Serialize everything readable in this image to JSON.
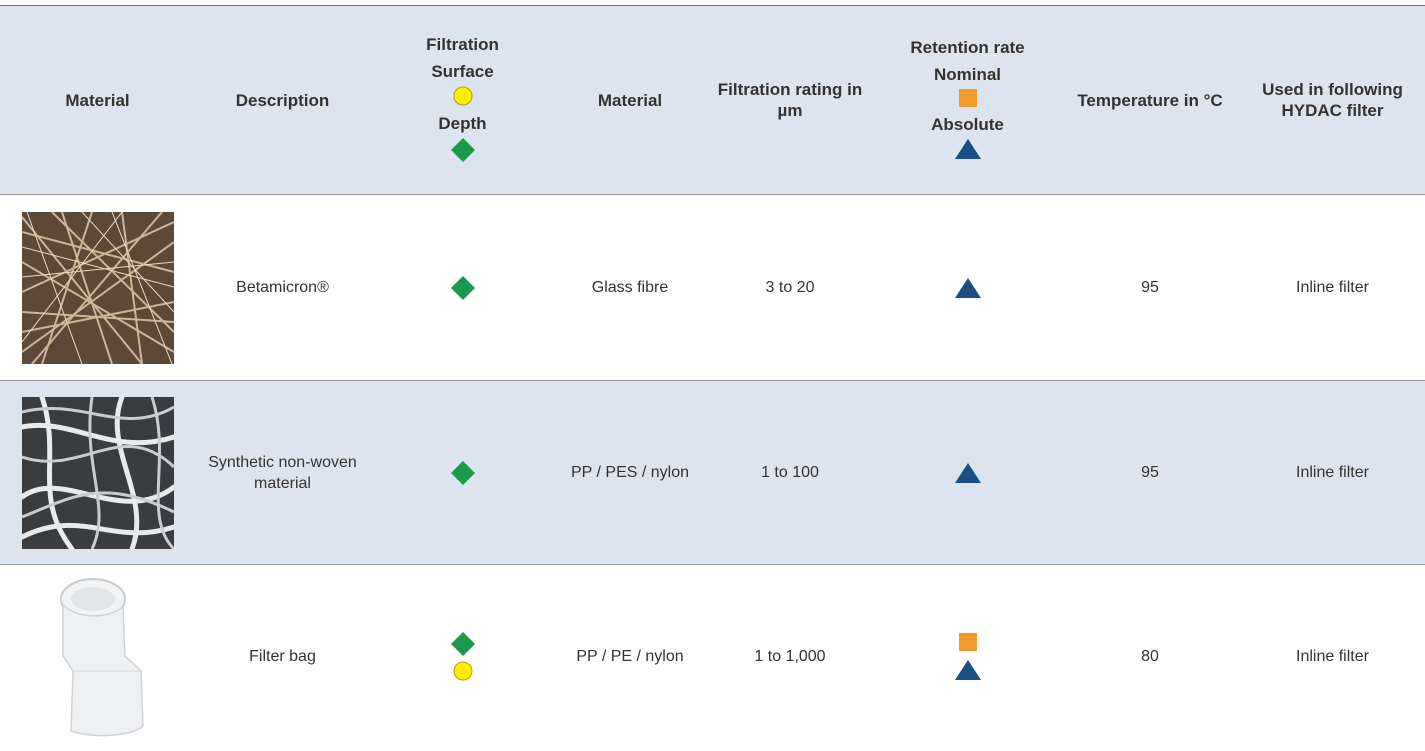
{
  "header": {
    "columns": [
      "Material",
      "Description",
      {
        "title": "Filtration",
        "items": [
          "Surface",
          "Depth"
        ]
      },
      "Material",
      "Filtration rating in µm",
      {
        "title": "Retention rate",
        "items": [
          "Nominal",
          "Absolute"
        ]
      },
      "Temperature in °C",
      "Used in following HYDAC filter"
    ]
  },
  "rows": [
    {
      "description": "Betamicron®",
      "material": "Glass fibre",
      "rating": "3 to 20",
      "temperature": 95,
      "used_in": "Inline filter"
    },
    {
      "description": "Synthetic non-woven material",
      "material": "PP / PES / nylon",
      "rating": "1 to 100",
      "temperature": 95,
      "used_in": "Inline filter"
    },
    {
      "description": "Filter bag",
      "material": "PP / PE / nylon",
      "rating": "1 to 1,000",
      "temperature": 80,
      "used_in": "Inline filter"
    }
  ]
}
